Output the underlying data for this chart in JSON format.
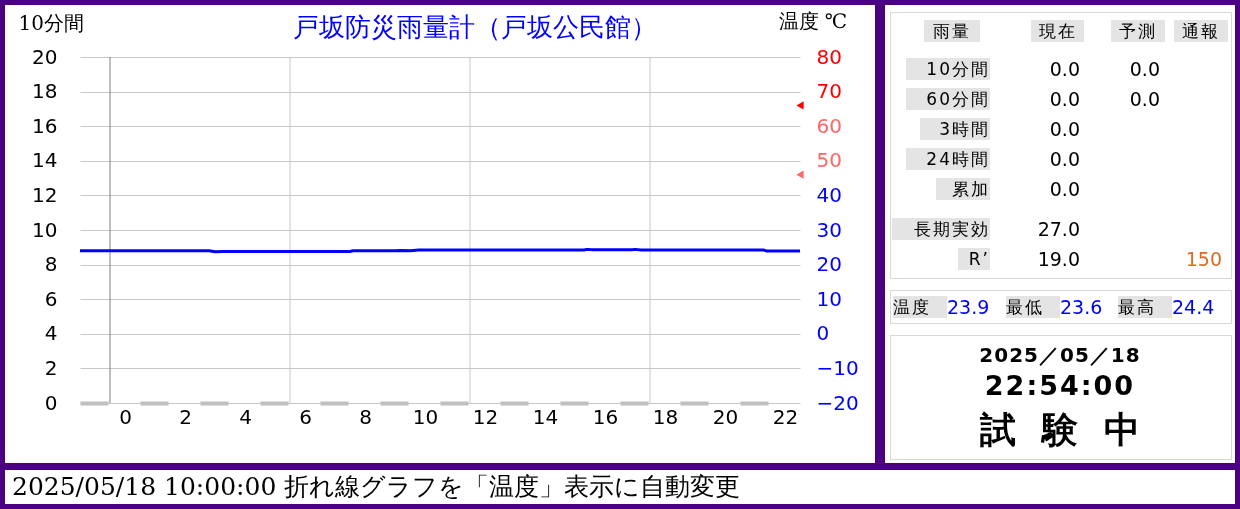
{
  "chart_data": [
    {
      "type": "line",
      "title": "戸坂防災雨量計（戸坂公民館）",
      "ylabel": "10分間",
      "y2label": "温度 ℃",
      "series": [
        {
          "color": "#0000ff",
          "axis": "y2",
          "x": [
            -1.5,
            2.8,
            3.0,
            3.3,
            7.5,
            7.6,
            9.0,
            9.2,
            9.5,
            9.8,
            15.3,
            15.4,
            15.6,
            16.9,
            17.0,
            17.2,
            21.3,
            21.4,
            22.5
          ],
          "values": [
            24.0,
            24.0,
            23.7,
            23.8,
            23.8,
            24.0,
            24.0,
            24.1,
            24.0,
            24.2,
            24.2,
            24.4,
            24.3,
            24.3,
            24.4,
            24.2,
            24.2,
            23.9,
            23.9
          ]
        },
        {
          "type": "scatter",
          "axis": "y2",
          "color": "#ff0000",
          "marker": "triangle",
          "x": [
            22.5
          ],
          "values": [
            66
          ]
        },
        {
          "type": "scatter",
          "axis": "y2",
          "color": "#ff6666",
          "marker": "triangle",
          "x": [
            22.5
          ],
          "values": [
            46
          ]
        }
      ],
      "xlim": [
        -1.5,
        22.5
      ],
      "xticks": [
        0,
        2,
        4,
        6,
        8,
        10,
        12,
        14,
        16,
        18,
        20,
        22
      ],
      "ylim": [
        0,
        20
      ],
      "yticks": [
        0,
        2,
        4,
        6,
        8,
        10,
        12,
        14,
        16,
        18,
        20
      ],
      "y2lim": [
        -20,
        80
      ],
      "y2ticks": [
        -20,
        -10,
        0,
        10,
        20,
        30,
        40,
        50,
        60,
        70,
        80
      ],
      "grid": "y",
      "ref_lines": [
        {
          "axis": "x",
          "value": -0.5,
          "color": "#808080"
        },
        {
          "axis": "x",
          "value": 5.5,
          "color": "#c8c8c8"
        },
        {
          "axis": "x",
          "value": 11.5,
          "color": "#c8c8c8"
        },
        {
          "axis": "x",
          "value": 17.5,
          "color": "#c8c8c8"
        }
      ],
      "annotations": [
        "2025/05/18 10:00:00 折れ線グラフを「温度」表示に自動変更"
      ]
    },
    {
      "type": "other",
      "annotations": [
        "雨量",
        "現在",
        "予測",
        "通報",
        "10分間",
        "0.0",
        "0.0",
        "60分間",
        "0.0",
        "0.0",
        "3時間",
        "0.0",
        "24時間",
        "0.0",
        "累加",
        "0.0",
        "長期実効",
        "27.0",
        "R’",
        "19.0",
        "150",
        "温度",
        "23.9",
        "最低",
        "23.6",
        "最高",
        "24.4",
        "2025／05／18",
        "22:54:00",
        "試験中"
      ]
    }
  ]
}
